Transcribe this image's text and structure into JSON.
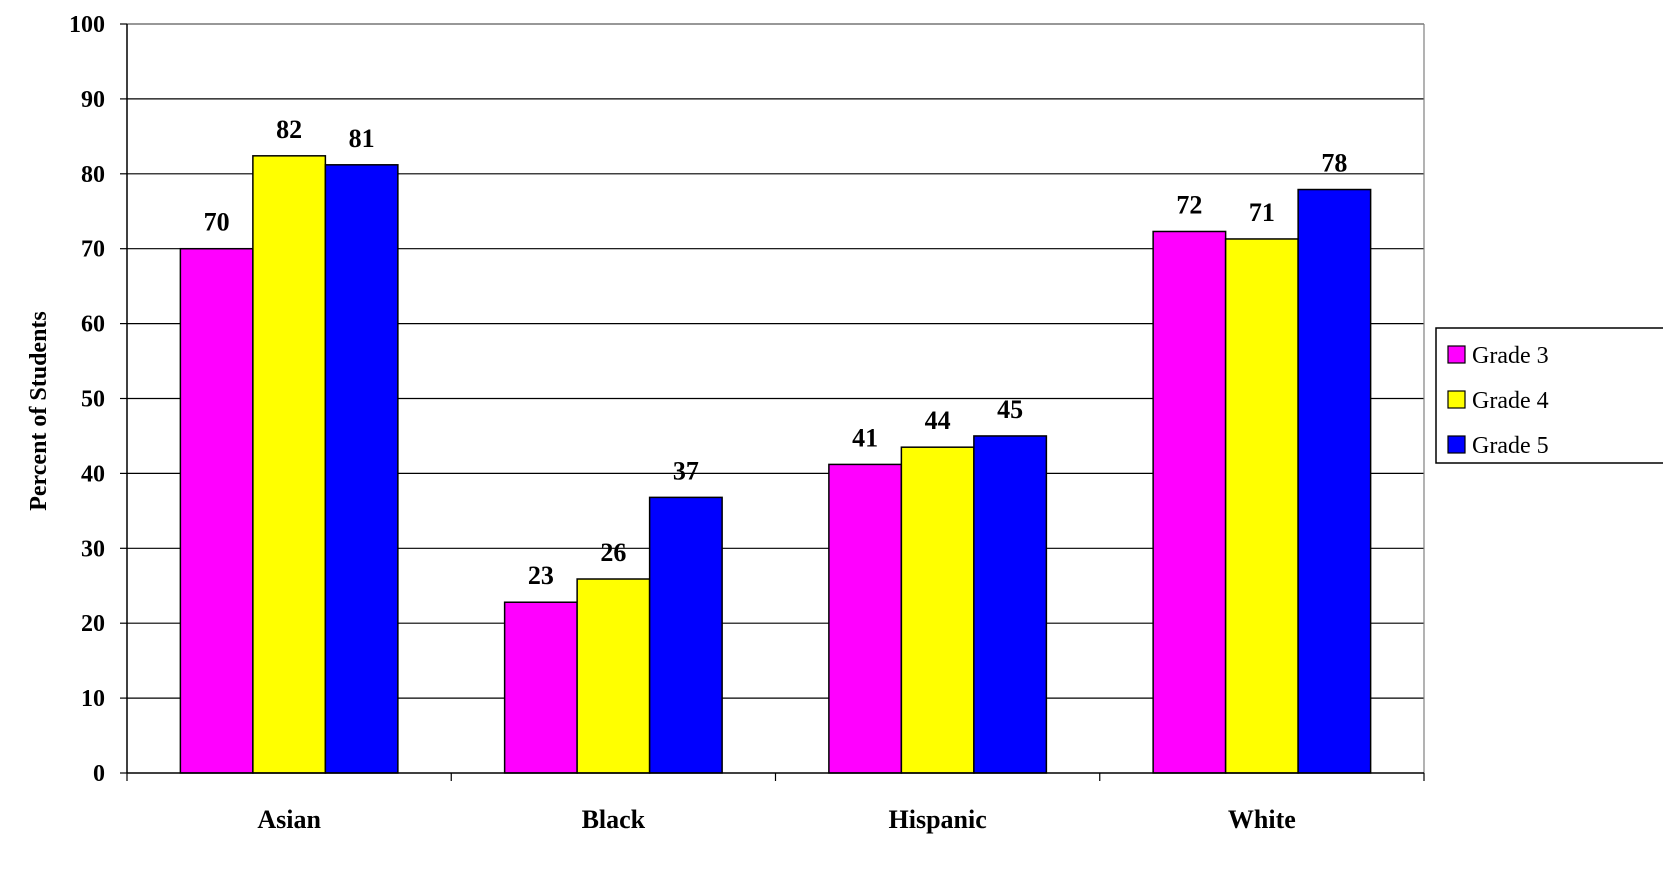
{
  "chart_data": {
    "type": "bar",
    "title": "",
    "xlabel": "",
    "ylabel": "Percent of Students",
    "categories": [
      "Asian",
      "Black",
      "Hispanic",
      "White"
    ],
    "series": [
      {
        "name": "Grade 3",
        "color": "#FF00FF",
        "values": [
          70,
          22.8,
          41.2,
          72.3
        ],
        "labels": [
          "70",
          "23",
          "41",
          "72"
        ]
      },
      {
        "name": "Grade 4",
        "color": "#FFFF00",
        "values": [
          82.4,
          25.9,
          43.5,
          71.3
        ],
        "labels": [
          "82",
          "26",
          "44",
          "71"
        ]
      },
      {
        "name": "Grade 5",
        "color": "#0000FF",
        "values": [
          81.2,
          36.8,
          45,
          77.9
        ],
        "labels": [
          "81",
          "37",
          "45",
          "78"
        ]
      }
    ],
    "ylim": [
      0,
      100
    ],
    "yticks": [
      0,
      10,
      20,
      30,
      40,
      50,
      60,
      70,
      80,
      90,
      100
    ],
    "grid": true,
    "legend_position": "right"
  }
}
